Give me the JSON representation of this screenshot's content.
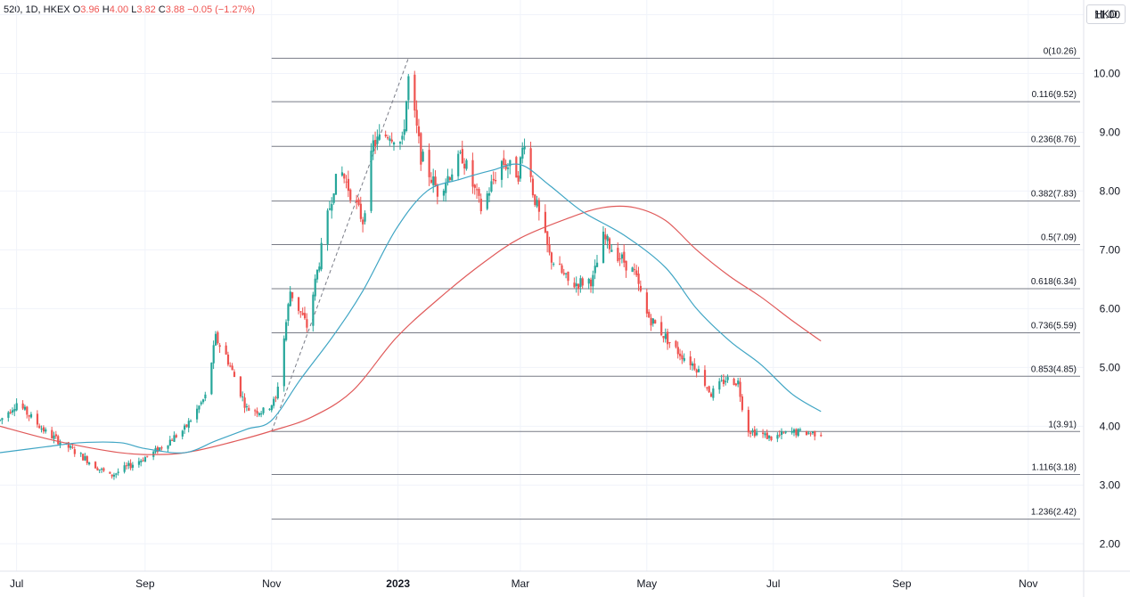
{
  "header": {
    "symbol": "520",
    "interval": "1D",
    "exchange": "HKEX",
    "open_label": "O",
    "open": "3.96",
    "high_label": "H",
    "high": "4.00",
    "low_label": "L",
    "low": "3.82",
    "close_label": "C",
    "close": "3.88",
    "change": "−0.05 (−1.27%)"
  },
  "currency": "HKD",
  "colors": {
    "up": "#26a69a",
    "down": "#ef5350",
    "ma_fast": "#3fa5c4",
    "ma_slow": "#e05a5a",
    "fib_line": "#787b86",
    "grid": "#f0f3fa"
  },
  "chart_data": {
    "type": "candlestick",
    "y_axis": {
      "range": [
        1.55,
        11.25
      ],
      "ticks": [
        "2.00",
        "3.00",
        "4.00",
        "5.00",
        "6.00",
        "7.00",
        "8.00",
        "9.00",
        "10.00",
        "11.00"
      ]
    },
    "x_axis": {
      "range": [
        "2022-06-23",
        "2023-11-26"
      ],
      "ticks": [
        {
          "label": "Jul",
          "date": "2022-07-01",
          "bold": false
        },
        {
          "label": "Sep",
          "date": "2022-09-01",
          "bold": false
        },
        {
          "label": "Nov",
          "date": "2022-11-01",
          "bold": false
        },
        {
          "label": "2023",
          "date": "2023-01-01",
          "bold": true
        },
        {
          "label": "Mar",
          "date": "2023-03-01",
          "bold": false
        },
        {
          "label": "May",
          "date": "2023-05-01",
          "bold": false
        },
        {
          "label": "Jul",
          "date": "2023-07-01",
          "bold": false
        },
        {
          "label": "Sep",
          "date": "2023-09-01",
          "bold": false
        },
        {
          "label": "Nov",
          "date": "2023-11-01",
          "bold": false
        }
      ]
    },
    "fibonacci": {
      "start_date": "2022-11-01",
      "end_date": "2023-11-26",
      "levels": [
        {
          "label": "0(10.26)",
          "price": 10.26
        },
        {
          "label": "0.116(9.52)",
          "price": 9.52
        },
        {
          "label": "0.236(8.76)",
          "price": 8.76
        },
        {
          "label": "0.382(7.83)",
          "price": 7.83
        },
        {
          "label": "0.5(7.09)",
          "price": 7.09
        },
        {
          "label": "0.618(6.34)",
          "price": 6.34
        },
        {
          "label": "0.736(5.59)",
          "price": 5.59
        },
        {
          "label": "0.853(4.85)",
          "price": 4.85
        },
        {
          "label": "1(3.91)",
          "price": 3.91
        },
        {
          "label": "1.116(3.18)",
          "price": 3.18
        },
        {
          "label": "1.236(2.42)",
          "price": 2.42
        }
      ]
    },
    "trend_line": {
      "from": [
        "2022-11-01",
        3.91
      ],
      "to": [
        "2023-01-06",
        10.26
      ]
    },
    "ma_fast": {
      "dates": [
        "2022-06-23",
        "2022-07-15",
        "2022-08-01",
        "2022-08-20",
        "2022-09-01",
        "2022-09-20",
        "2022-10-05",
        "2022-10-20",
        "2022-11-01",
        "2022-11-15",
        "2022-12-01",
        "2022-12-15",
        "2022-12-31",
        "2023-01-15",
        "2023-01-31",
        "2023-02-15",
        "2023-03-01",
        "2023-03-15",
        "2023-03-31",
        "2023-04-20",
        "2023-05-10",
        "2023-05-25",
        "2023-06-10",
        "2023-06-25",
        "2023-07-10",
        "2023-07-24"
      ],
      "values": [
        3.55,
        3.65,
        3.72,
        3.72,
        3.62,
        3.55,
        3.75,
        3.95,
        4.1,
        4.8,
        5.55,
        6.3,
        7.35,
        8.0,
        8.2,
        8.35,
        8.45,
        8.1,
        7.65,
        7.25,
        6.7,
        6.0,
        5.45,
        5.05,
        4.55,
        4.25
      ]
    },
    "ma_slow": {
      "dates": [
        "2022-06-23",
        "2022-07-20",
        "2022-08-20",
        "2022-09-10",
        "2022-09-25",
        "2022-10-15",
        "2022-11-01",
        "2022-11-20",
        "2022-12-10",
        "2022-12-31",
        "2023-01-20",
        "2023-02-10",
        "2023-03-01",
        "2023-03-25",
        "2023-04-10",
        "2023-04-25",
        "2023-05-10",
        "2023-05-25",
        "2023-06-10",
        "2023-06-25",
        "2023-07-10",
        "2023-07-24"
      ],
      "values": [
        4.0,
        3.75,
        3.55,
        3.52,
        3.58,
        3.75,
        3.92,
        4.15,
        4.6,
        5.5,
        6.15,
        6.75,
        7.2,
        7.55,
        7.72,
        7.72,
        7.5,
        7.0,
        6.55,
        6.2,
        5.8,
        5.45
      ]
    },
    "price_path": {
      "dates": [
        "2022-06-23",
        "2022-07-01",
        "2022-07-15",
        "2022-08-01",
        "2022-08-15",
        "2022-08-31",
        "2022-09-05",
        "2022-09-20",
        "2022-09-30",
        "2022-10-05",
        "2022-10-10",
        "2022-10-20",
        "2022-10-28",
        "2022-11-03",
        "2022-11-10",
        "2022-11-18",
        "2022-11-25",
        "2022-12-01",
        "2022-12-05",
        "2022-12-15",
        "2022-12-20",
        "2022-12-28",
        "2023-01-03",
        "2023-01-06",
        "2023-01-12",
        "2023-01-20",
        "2023-02-01",
        "2023-02-10",
        "2023-02-20",
        "2023-02-28",
        "2023-03-03",
        "2023-03-07",
        "2023-03-15",
        "2023-03-25",
        "2023-04-05",
        "2023-04-10",
        "2023-04-25",
        "2023-05-01",
        "2023-05-15",
        "2023-05-25",
        "2023-06-01",
        "2023-06-08",
        "2023-06-14",
        "2023-06-18",
        "2023-06-30",
        "2023-07-10",
        "2023-07-24"
      ],
      "values": [
        4.1,
        4.4,
        3.9,
        3.5,
        3.15,
        3.45,
        3.55,
        3.95,
        4.5,
        5.5,
        5.2,
        4.3,
        4.25,
        4.45,
        6.3,
        5.7,
        7.0,
        8.1,
        8.3,
        7.5,
        8.8,
        9.0,
        8.8,
        9.9,
        8.6,
        8.0,
        8.6,
        7.7,
        8.5,
        8.3,
        8.9,
        8.0,
        6.9,
        6.4,
        6.5,
        7.2,
        6.6,
        5.9,
        5.3,
        5.0,
        4.55,
        4.8,
        4.75,
        3.95,
        3.8,
        3.9,
        3.88
      ]
    }
  }
}
